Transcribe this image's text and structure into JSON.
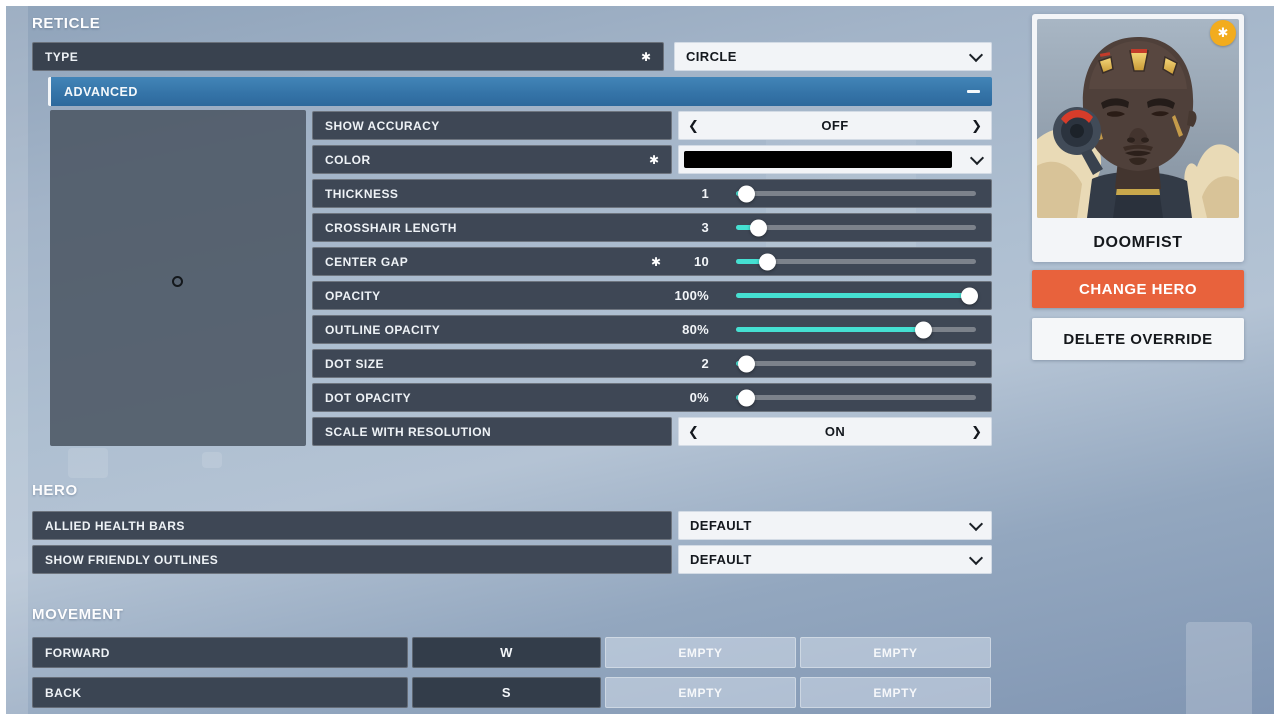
{
  "colors": {
    "accent_teal": "#45e0d2",
    "advanced_blue": "#3a79ad",
    "button_orange": "#e8623c",
    "badge_gold": "#f2ac1e",
    "reticle_color": "#000000"
  },
  "reticle": {
    "title": "RETICLE",
    "type": {
      "label": "TYPE",
      "required_icon": "✱",
      "value": "CIRCLE"
    },
    "advanced": {
      "header": "ADVANCED",
      "stepper_prev_icon": "❮",
      "stepper_next_icon": "❯",
      "rows": [
        {
          "label": "SHOW ACCURACY",
          "control": "stepper",
          "value": "OFF"
        },
        {
          "label": "COLOR",
          "required_icon": "✱",
          "control": "color-picker",
          "value": "#000000"
        },
        {
          "label": "THICKNESS",
          "control": "slider",
          "value": "1",
          "fill_pct": 4
        },
        {
          "label": "CROSSHAIR LENGTH",
          "control": "slider",
          "value": "3",
          "fill_pct": 9
        },
        {
          "label": "CENTER GAP",
          "required_icon": "✱",
          "control": "slider",
          "value": "10",
          "fill_pct": 13
        },
        {
          "label": "OPACITY",
          "control": "slider",
          "value": "100%",
          "fill_pct": 97
        },
        {
          "label": "OUTLINE OPACITY",
          "control": "slider",
          "value": "80%",
          "fill_pct": 78
        },
        {
          "label": "DOT SIZE",
          "control": "slider",
          "value": "2",
          "fill_pct": 4
        },
        {
          "label": "DOT OPACITY",
          "control": "slider",
          "value": "0%",
          "fill_pct": 4
        },
        {
          "label": "SCALE WITH RESOLUTION",
          "control": "stepper",
          "value": "ON"
        }
      ]
    }
  },
  "hero_settings": {
    "title": "HERO",
    "rows": [
      {
        "label": "ALLIED HEALTH BARS",
        "value": "DEFAULT"
      },
      {
        "label": "SHOW FRIENDLY OUTLINES",
        "value": "DEFAULT"
      }
    ]
  },
  "movement": {
    "title": "MOVEMENT",
    "rows": [
      {
        "action": "FORWARD",
        "primary": "W",
        "secondary": "EMPTY",
        "tertiary": "EMPTY"
      },
      {
        "action": "BACK",
        "primary": "S",
        "secondary": "EMPTY",
        "tertiary": "EMPTY"
      }
    ]
  },
  "hero_panel": {
    "name": "DOOMFIST",
    "badge_icon": "✱",
    "change_hero_label": "CHANGE HERO",
    "delete_override_label": "DELETE OVERRIDE"
  }
}
